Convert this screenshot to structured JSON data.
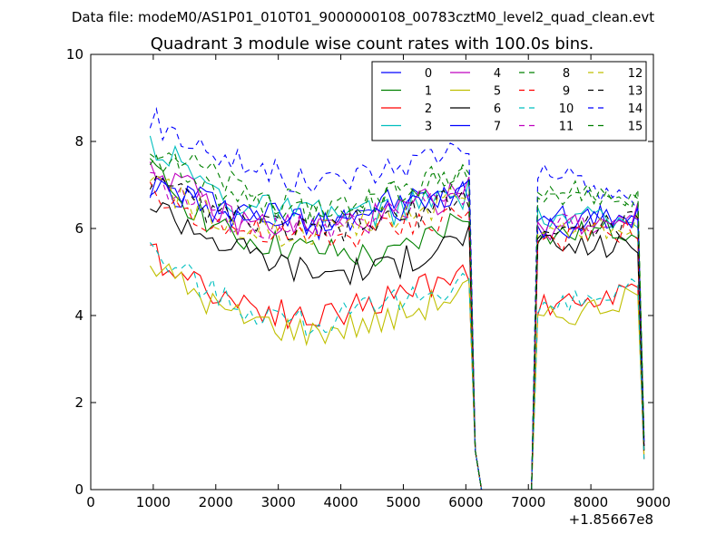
{
  "chart_data": {
    "type": "line",
    "suptitle": "Data file: modeM0/AS1P01_010T01_9000000108_00783cztM0_level2_quad_clean.evt",
    "title": "Quadrant 3 module wise count rates with 100.0s bins.",
    "xlabel": "",
    "ylabel": "",
    "x_offset_label": "+1.85667e8",
    "xlim": [
      0,
      9000
    ],
    "ylim": [
      0,
      10
    ],
    "xticks": [
      0,
      1000,
      2000,
      3000,
      4000,
      5000,
      6000,
      7000,
      8000,
      9000
    ],
    "yticks": [
      0,
      2,
      4,
      6,
      8,
      10
    ],
    "grid": false,
    "legend_position": "top-right",
    "segments": [
      {
        "x_start": 950,
        "x_end": 6050,
        "step": 100
      },
      {
        "x_start": 6050,
        "x_end": 6150,
        "step": 100
      },
      {
        "x_start": 6150,
        "x_end": 6250,
        "step": 100
      },
      {
        "x_start": 6250,
        "x_end": 7050,
        "step": 100
      },
      {
        "x_start": 7050,
        "x_end": 7150,
        "step": 100
      },
      {
        "x_start": 7150,
        "x_end": 8750,
        "step": 100
      },
      {
        "x_start": 8750,
        "x_end": 8850,
        "step": 100
      }
    ],
    "series": [
      {
        "name": "0",
        "color": "#0000ff",
        "dash": "solid",
        "levels": [
          7.0,
          6.5,
          6.2,
          6.6,
          6.8
        ],
        "tail": 6.2,
        "gap_level": 6.3,
        "end": 1.0
      },
      {
        "name": "1",
        "color": "#008000",
        "dash": "solid",
        "levels": [
          7.3,
          5.8,
          5.5,
          5.3,
          6.4
        ],
        "tail": 6.0,
        "gap_level": 5.8,
        "end": 0.9
      },
      {
        "name": "2",
        "color": "#ff0000",
        "dash": "solid",
        "levels": [
          5.4,
          4.4,
          3.9,
          4.4,
          5.1
        ],
        "tail": 4.5,
        "gap_level": 4.2,
        "end": 0.7
      },
      {
        "name": "3",
        "color": "#00bfbf",
        "dash": "solid",
        "levels": [
          8.0,
          6.6,
          6.3,
          6.4,
          6.8
        ],
        "tail": 6.1,
        "gap_level": 6.3,
        "end": 1.1
      },
      {
        "name": "4",
        "color": "#bf00bf",
        "dash": "solid",
        "levels": [
          7.5,
          6.2,
          6.0,
          6.3,
          6.9
        ],
        "tail": 6.3,
        "gap_level": 6.0,
        "end": 1.0
      },
      {
        "name": "5",
        "color": "#bfbf00",
        "dash": "solid",
        "levels": [
          5.2,
          4.0,
          3.6,
          3.9,
          4.6
        ],
        "tail": 4.4,
        "gap_level": 3.9,
        "end": 0.8
      },
      {
        "name": "6",
        "color": "#000000",
        "dash": "solid",
        "levels": [
          6.6,
          5.6,
          5.0,
          5.1,
          5.9
        ],
        "tail": 5.6,
        "gap_level": 5.6,
        "end": 0.9
      },
      {
        "name": "7",
        "color": "#0000ff",
        "dash": "solid",
        "levels": [
          7.0,
          6.3,
          6.0,
          6.4,
          7.0
        ],
        "tail": 6.3,
        "gap_level": 6.0,
        "end": 1.2
      },
      {
        "name": "8",
        "color": "#008000",
        "dash": "dashed",
        "levels": [
          7.8,
          6.6,
          6.3,
          6.8,
          7.2
        ],
        "tail": 6.7,
        "gap_level": 6.8,
        "end": 1.3
      },
      {
        "name": "9",
        "color": "#ff0000",
        "dash": "dashed",
        "levels": [
          6.8,
          6.0,
          5.7,
          6.0,
          6.4
        ],
        "tail": 6.0,
        "gap_level": 5.7,
        "end": 1.0
      },
      {
        "name": "10",
        "color": "#00bfbf",
        "dash": "dashed",
        "levels": [
          5.5,
          4.3,
          3.8,
          4.2,
          4.9
        ],
        "tail": 4.6,
        "gap_level": 4.1,
        "end": 0.7
      },
      {
        "name": "11",
        "color": "#bf00bf",
        "dash": "dashed",
        "levels": [
          7.2,
          6.2,
          6.0,
          6.4,
          6.9
        ],
        "tail": 6.3,
        "gap_level": 6.1,
        "end": 1.1
      },
      {
        "name": "12",
        "color": "#bfbf00",
        "dash": "dashed",
        "levels": [
          7.1,
          6.1,
          5.8,
          6.2,
          6.8
        ],
        "tail": 6.1,
        "gap_level": 6.0,
        "end": 1.0
      },
      {
        "name": "13",
        "color": "#000000",
        "dash": "dashed",
        "levels": [
          7.0,
          6.2,
          5.9,
          6.2,
          6.7
        ],
        "tail": 6.2,
        "gap_level": 5.9,
        "end": 1.0
      },
      {
        "name": "14",
        "color": "#0000ff",
        "dash": "dashed",
        "levels": [
          8.5,
          7.6,
          7.0,
          7.4,
          8.0
        ],
        "tail": 6.6,
        "gap_level": 7.3,
        "end": 1.1
      },
      {
        "name": "15",
        "color": "#008000",
        "dash": "dashed",
        "levels": [
          8.0,
          7.0,
          6.4,
          6.8,
          7.4
        ],
        "tail": 6.7,
        "gap_level": 6.9,
        "end": 1.1
      }
    ]
  }
}
